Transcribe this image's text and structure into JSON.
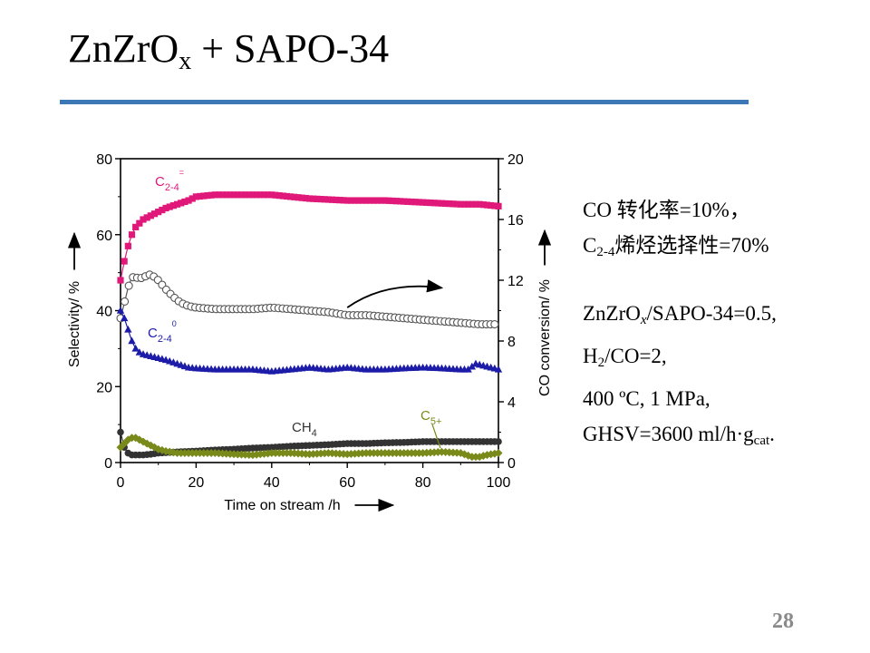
{
  "slide": {
    "title_main": "ZnZrO",
    "title_sub": "x",
    "title_rest": " + SAPO-34",
    "page_number": "28",
    "accent_color": "#3b78b5"
  },
  "info": {
    "line1": "CO 转化率=10%，",
    "line2_pre": "C",
    "line2_sub": "2-4",
    "line2_post": "烯烃选择性=70%",
    "line3_pre": "ZnZrO",
    "line3_x": "x",
    "line3_post": "/SAPO-34=0.5,",
    "line4_pre": "H",
    "line4_sub": "2",
    "line4_post": "/CO=2,",
    "line5": "400 ºC, 1 MPa,",
    "line6_pre": "GHSV=3600 ml/h·g",
    "line6_sub": "cat",
    "line6_post": "."
  },
  "chart_data": {
    "type": "scatter",
    "xlabel": "Time on stream /h",
    "ylabel_left": "Selectivity/ %",
    "ylabel_right": "CO conversion/ %",
    "xlim": [
      0,
      100
    ],
    "ylim_left": [
      0,
      80
    ],
    "ylim_right": [
      0,
      20
    ],
    "xticks": [
      0,
      20,
      40,
      60,
      80,
      100
    ],
    "yticks_left": [
      0,
      20,
      40,
      60,
      80
    ],
    "yticks_right": [
      0,
      4,
      8,
      12,
      16,
      20
    ],
    "series": [
      {
        "name": "C2-4=",
        "label_main": "C",
        "label_sub": "2-4",
        "label_sup": "=",
        "axis": "left",
        "marker": "square",
        "color": "#e0187a",
        "x": [
          0,
          1,
          2,
          3,
          4,
          6,
          8,
          10,
          12,
          15,
          18,
          20,
          25,
          30,
          35,
          40,
          45,
          50,
          60,
          70,
          80,
          90,
          95,
          100
        ],
        "y": [
          48,
          53,
          57,
          60,
          62,
          64,
          65,
          66,
          67,
          68,
          69,
          70,
          70.5,
          70.5,
          70.5,
          70.5,
          70,
          69.5,
          69,
          69,
          68.5,
          68,
          68,
          67.5
        ]
      },
      {
        "name": "CO conversion",
        "axis": "right",
        "marker": "open-circle",
        "color": "#555555",
        "x": [
          0,
          1,
          2,
          3,
          4,
          5,
          6,
          7,
          8,
          9,
          10,
          11,
          12,
          14,
          16,
          18,
          20,
          25,
          30,
          35,
          40,
          45,
          50,
          55,
          60,
          65,
          70,
          75,
          80,
          85,
          90,
          95,
          100
        ],
        "y": [
          9.5,
          10.5,
          11.5,
          12.2,
          12.2,
          12.1,
          12.2,
          12.3,
          12.4,
          12.2,
          12,
          11.7,
          11.4,
          10.9,
          10.5,
          10.3,
          10.2,
          10.1,
          10.1,
          10.1,
          10.2,
          10.1,
          10,
          9.9,
          9.7,
          9.7,
          9.6,
          9.5,
          9.4,
          9.3,
          9.2,
          9.1,
          9.1
        ]
      },
      {
        "name": "C2-40",
        "label_main": "C",
        "label_sub": "2-4",
        "label_sup": "0",
        "axis": "left",
        "marker": "triangle",
        "color": "#1c1ca8",
        "x": [
          0,
          1,
          2,
          3,
          4,
          5,
          6,
          8,
          10,
          12,
          15,
          18,
          20,
          25,
          30,
          35,
          40,
          45,
          50,
          55,
          60,
          65,
          70,
          75,
          80,
          85,
          90,
          92,
          94,
          96,
          98,
          100
        ],
        "y": [
          40,
          38,
          35,
          32,
          30,
          29,
          28.5,
          28,
          27.5,
          27,
          26,
          25,
          24.8,
          24.5,
          24.5,
          24.5,
          24,
          24.5,
          25,
          24.5,
          25,
          24.5,
          24.5,
          24.8,
          25,
          24.8,
          24.5,
          24.5,
          26,
          25.5,
          25,
          24.5
        ]
      },
      {
        "name": "CH4",
        "label_main": "CH",
        "label_sub": "4",
        "axis": "left",
        "marker": "circle",
        "color": "#333333",
        "x": [
          0,
          1,
          2,
          3,
          4,
          6,
          8,
          10,
          15,
          20,
          25,
          30,
          35,
          40,
          45,
          50,
          55,
          60,
          65,
          70,
          75,
          80,
          85,
          90,
          95,
          100
        ],
        "y": [
          8,
          4,
          2.5,
          2,
          2,
          2,
          2.2,
          2.5,
          2.8,
          3,
          3.3,
          3.5,
          3.8,
          4,
          4.3,
          4.5,
          4.7,
          5,
          5,
          5.2,
          5.3,
          5.5,
          5.5,
          5.5,
          5.5,
          5.5
        ]
      },
      {
        "name": "C5+",
        "label_main": "C",
        "label_sub": "5+",
        "axis": "left",
        "marker": "diamond",
        "color": "#7a8a1a",
        "x": [
          0,
          1,
          2,
          3,
          4,
          5,
          6,
          7,
          8,
          9,
          10,
          12,
          15,
          20,
          25,
          30,
          35,
          40,
          45,
          50,
          55,
          60,
          65,
          70,
          75,
          80,
          85,
          90,
          93,
          95,
          97,
          100
        ],
        "y": [
          4,
          5,
          6,
          6.5,
          6.5,
          6,
          5.5,
          5,
          4.5,
          4,
          3.5,
          3,
          2.5,
          2.5,
          2.5,
          2.2,
          2,
          2.5,
          2.5,
          2.2,
          2.5,
          2.2,
          2.5,
          2.5,
          2.5,
          2.5,
          2.8,
          2.5,
          1.5,
          1.5,
          2,
          2.5
        ]
      }
    ],
    "annotations": [
      {
        "text": "curved arrow",
        "kind": "arrow",
        "from": [
          60,
          10.2
        ],
        "to": [
          85,
          11.5
        ]
      }
    ]
  }
}
